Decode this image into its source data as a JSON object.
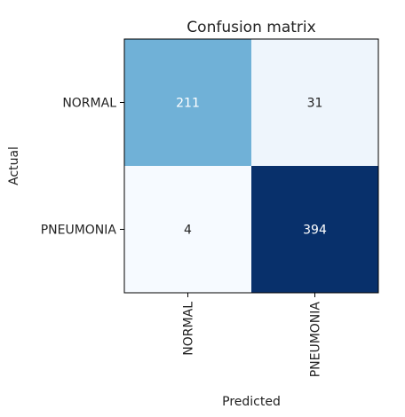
{
  "chart_data": {
    "type": "heatmap",
    "title": "Confusion matrix",
    "xlabel": "Predicted",
    "ylabel": "Actual",
    "x_categories": [
      "NORMAL",
      "PNEUMONIA"
    ],
    "y_categories": [
      "NORMAL",
      "PNEUMONIA"
    ],
    "values": [
      [
        211,
        31
      ],
      [
        4,
        394
      ]
    ],
    "colormap": "Blues",
    "color_range": [
      0,
      394
    ],
    "cell_colors": {
      "low": "#f7fbff",
      "high": "#08306b"
    },
    "text_color_light": "#ffffff",
    "text_color_dark": "#222222"
  }
}
